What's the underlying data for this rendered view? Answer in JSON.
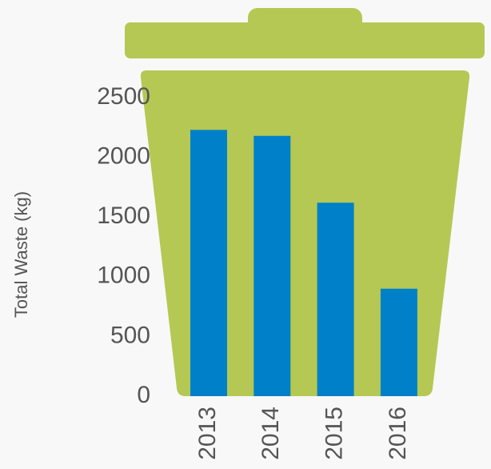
{
  "chart_data": {
    "type": "bar",
    "y_label": "Total Waste (kg)",
    "categories": [
      "2013",
      "2014",
      "2015",
      "2016"
    ],
    "values": [
      2230,
      2180,
      1620,
      900
    ],
    "color": "#0080c8",
    "ylim": [
      0,
      2500
    ],
    "yticks": [
      0,
      500,
      1000,
      1500,
      2000,
      2500
    ],
    "grid": false
  }
}
